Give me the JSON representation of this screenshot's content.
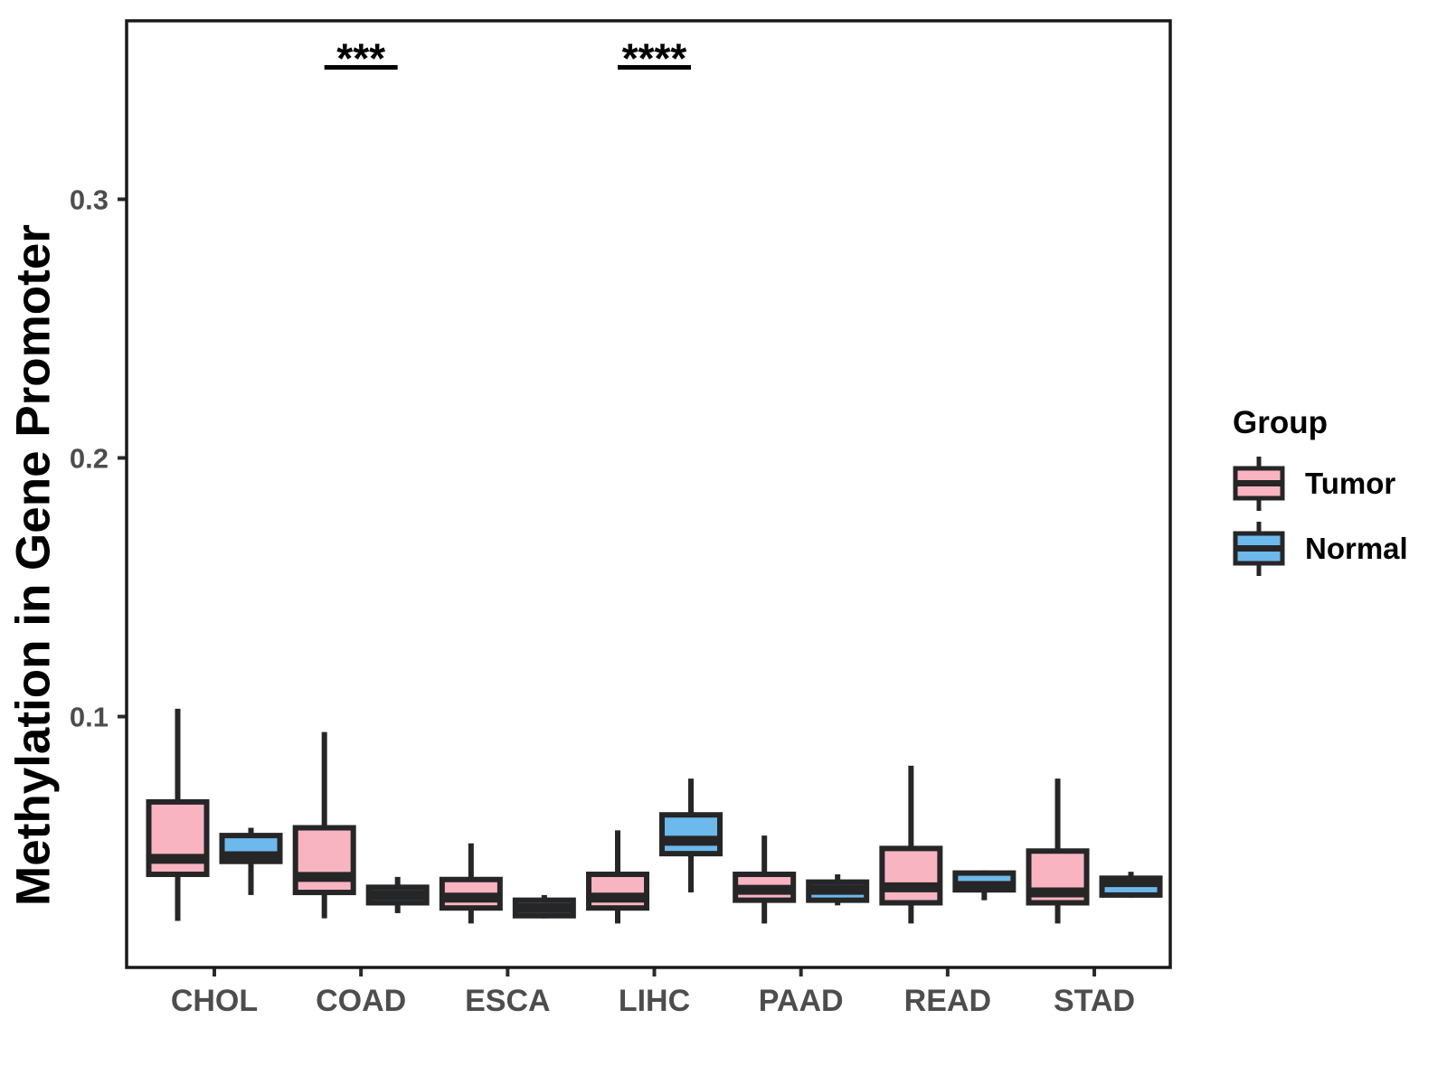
{
  "colors": {
    "tumor_fill": "#F9B4C2",
    "normal_fill": "#6CB9EC",
    "box_line": "#262626",
    "axis_text": "#4D4D4D",
    "panel_border": "#1A1A1A",
    "annotation": "#000000",
    "background": "#FFFFFF"
  },
  "chart_data": {
    "type": "boxplot",
    "title": "",
    "xlabel": "",
    "ylabel": "Methylation in Gene Promoter",
    "categories": [
      "CHOL",
      "COAD",
      "ESCA",
      "LIHC",
      "PAAD",
      "READ",
      "STAD"
    ],
    "groups": [
      "Tumor",
      "Normal"
    ],
    "ylim": [
      0.003,
      0.369
    ],
    "yticks": [
      {
        "value": 0.1,
        "label": "0.1"
      },
      {
        "value": 0.2,
        "label": "0.2"
      },
      {
        "value": 0.3,
        "label": "0.3"
      }
    ],
    "grid": false,
    "legend": {
      "title": "Group",
      "position": "right",
      "items": [
        "Tumor",
        "Normal"
      ]
    },
    "series": [
      {
        "name": "Tumor",
        "color": "#F9B4C2",
        "boxes": [
          {
            "category": "CHOL",
            "whisker_low": 0.021,
            "q1": 0.039,
            "median": 0.045,
            "q3": 0.067,
            "whisker_high": 0.103
          },
          {
            "category": "COAD",
            "whisker_low": 0.022,
            "q1": 0.032,
            "median": 0.038,
            "q3": 0.057,
            "whisker_high": 0.094
          },
          {
            "category": "ESCA",
            "whisker_low": 0.02,
            "q1": 0.026,
            "median": 0.03,
            "q3": 0.037,
            "whisker_high": 0.051
          },
          {
            "category": "LIHC",
            "whisker_low": 0.02,
            "q1": 0.026,
            "median": 0.03,
            "q3": 0.039,
            "whisker_high": 0.056
          },
          {
            "category": "PAAD",
            "whisker_low": 0.02,
            "q1": 0.029,
            "median": 0.033,
            "q3": 0.039,
            "whisker_high": 0.054
          },
          {
            "category": "READ",
            "whisker_low": 0.02,
            "q1": 0.028,
            "median": 0.034,
            "q3": 0.049,
            "whisker_high": 0.081
          },
          {
            "category": "STAD",
            "whisker_low": 0.02,
            "q1": 0.028,
            "median": 0.032,
            "q3": 0.048,
            "whisker_high": 0.076
          }
        ]
      },
      {
        "name": "Normal",
        "color": "#6CB9EC",
        "boxes": [
          {
            "category": "CHOL",
            "whisker_low": 0.031,
            "q1": 0.044,
            "median": 0.046,
            "q3": 0.054,
            "whisker_high": 0.057
          },
          {
            "category": "COAD",
            "whisker_low": 0.024,
            "q1": 0.028,
            "median": 0.031,
            "q3": 0.034,
            "whisker_high": 0.038
          },
          {
            "category": "ESCA",
            "whisker_low": 0.022,
            "q1": 0.023,
            "median": 0.026,
            "q3": 0.029,
            "whisker_high": 0.031
          },
          {
            "category": "LIHC",
            "whisker_low": 0.032,
            "q1": 0.047,
            "median": 0.052,
            "q3": 0.062,
            "whisker_high": 0.076
          },
          {
            "category": "PAAD",
            "whisker_low": 0.027,
            "q1": 0.029,
            "median": 0.033,
            "q3": 0.036,
            "whisker_high": 0.039
          },
          {
            "category": "READ",
            "whisker_low": 0.029,
            "q1": 0.033,
            "median": 0.0345,
            "q3": 0.0395,
            "whisker_high": 0.0405
          },
          {
            "category": "STAD",
            "whisker_low": 0.03,
            "q1": 0.031,
            "median": 0.036,
            "q3": 0.0375,
            "whisker_high": 0.04
          }
        ]
      }
    ],
    "annotations": [
      {
        "category": "COAD",
        "label": "***",
        "y": 0.351
      },
      {
        "category": "LIHC",
        "label": "****",
        "y": 0.351
      }
    ]
  }
}
